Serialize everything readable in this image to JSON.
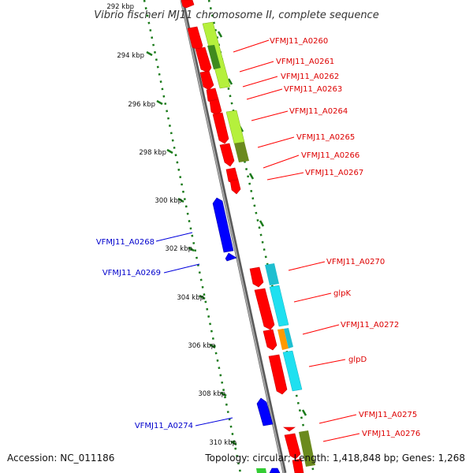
{
  "title": "Vibrio fischeri MJ11 chromosome II, complete sequence",
  "ticks": [
    "292 kbp",
    "294 kbp",
    "296 kbp",
    "298 kbp",
    "300 kbp",
    "302 kbp",
    "304 kbp",
    "306 kbp",
    "308 kbp",
    "310 kbp"
  ],
  "genes_forward": [
    "VFMJ11_A0260",
    "VFMJ11_A0261",
    "VFMJ11_A0262",
    "VFMJ11_A0263",
    "VFMJ11_A0264",
    "VFMJ11_A0265",
    "VFMJ11_A0266",
    "VFMJ11_A0267",
    "VFMJ11_A0270",
    "glpK",
    "VFMJ11_A0272",
    "glpD",
    "VFMJ11_A0275",
    "VFMJ11_A0276"
  ],
  "genes_reverse": [
    "VFMJ11_A0268",
    "VFMJ11_A0269",
    "VFMJ11_A0274"
  ],
  "footer": {
    "accession": "Accession: NC_011186",
    "stats": "Topology: circular; Length: 1,418,848 bp; Genes: 1,268"
  },
  "colors": {
    "forward_gene": "#ff0000",
    "reverse_gene": "#0000ff",
    "backbone": "#8a8a8a",
    "tick": "#1a7a1a",
    "cog_light_green": "#b5f03c",
    "cog_olive": "#6b8a1e",
    "cog_cyan": "#1fe0f0",
    "cog_orange": "#ff9900"
  }
}
